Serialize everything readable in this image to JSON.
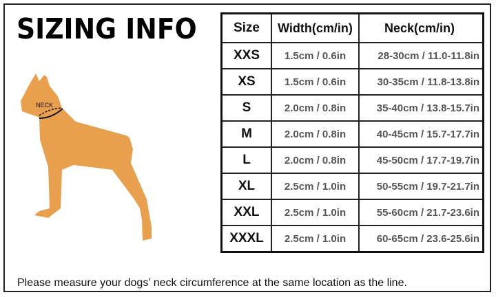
{
  "title": "SIZING INFO",
  "dog_label": "NECK",
  "colors": {
    "dog": "#e8a04e",
    "border": "#222222"
  },
  "table": {
    "headers": [
      "Size",
      "Width(cm/in)",
      "Neck(cm/in)"
    ],
    "rows": [
      [
        "XXS",
        "1.5cm / 0.6in",
        "28-30cm / 11.0-11.8in"
      ],
      [
        "XS",
        "1.5cm / 0.6in",
        "30-35cm / 11.8-13.8in"
      ],
      [
        "S",
        "2.0cm / 0.8in",
        "35-40cm / 13.8-15.7in"
      ],
      [
        "M",
        "2.0cm / 0.8in",
        "40-45cm / 15.7-17.7in"
      ],
      [
        "L",
        "2.0cm / 0.8in",
        "45-50cm / 17.7-19.7in"
      ],
      [
        "XL",
        "2.5cm / 1.0in",
        "50-55cm / 19.7-21.7in"
      ],
      [
        "XXL",
        "2.5cm / 1.0in",
        "55-60cm / 21.7-23.6in"
      ],
      [
        "XXXL",
        "2.5cm / 1.0in",
        "60-65cm / 23.6-25.6in"
      ]
    ]
  },
  "note": "Please measure your dogs’  neck circumference at the same location as the line."
}
